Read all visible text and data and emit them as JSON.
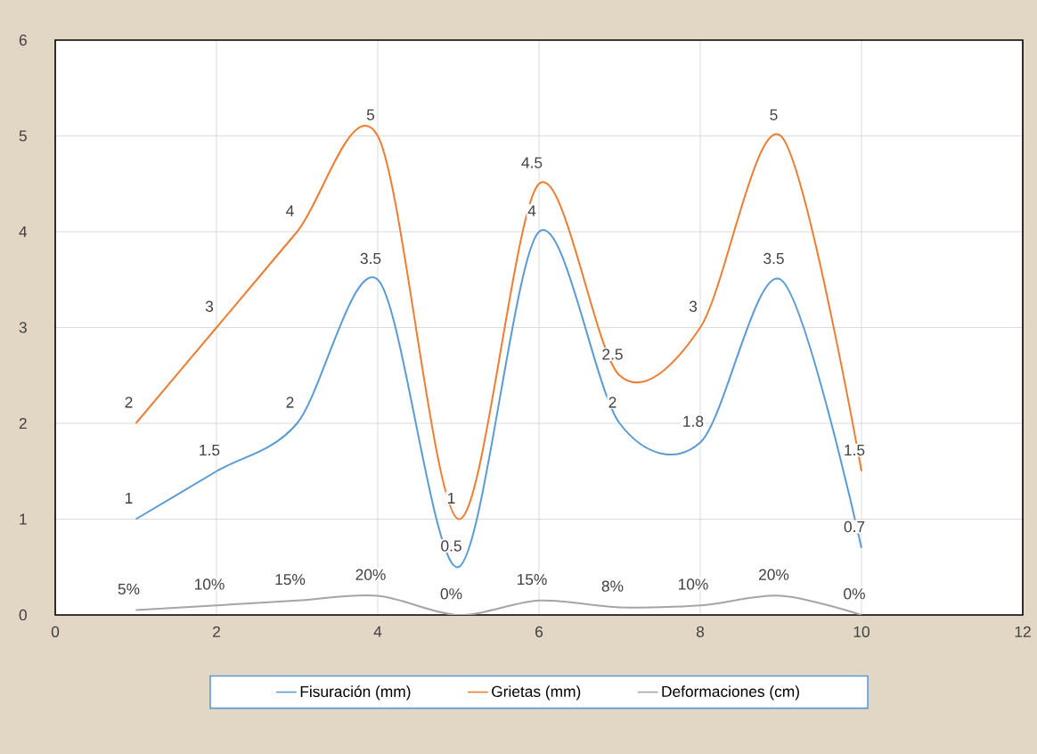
{
  "chart_data": {
    "type": "line",
    "x": [
      1,
      2,
      3,
      4,
      5,
      6,
      7,
      8,
      9,
      10
    ],
    "series": [
      {
        "name": "Fisuración (mm)",
        "color": "#5b9bd5",
        "values": [
          1,
          1.5,
          2,
          3.5,
          0.5,
          4,
          2,
          1.8,
          3.5,
          0.7
        ],
        "value_labels": [
          "1",
          "1.5",
          "2",
          "3.5",
          "0.5",
          "4",
          "2",
          "1.8",
          "3.5",
          "0.7"
        ]
      },
      {
        "name": "Grietas (mm)",
        "color": "#ed7d31",
        "values": [
          2,
          3,
          4,
          5,
          1,
          4.5,
          2.5,
          3,
          5,
          1.5
        ],
        "value_labels": [
          "2",
          "3",
          "4",
          "5",
          "1",
          "4.5",
          "2.5",
          "3",
          "5",
          "1.5"
        ]
      },
      {
        "name": "Deformaciones (cm)",
        "color": "#a5a5a5",
        "values": [
          0.05,
          0.1,
          0.15,
          0.2,
          0,
          0.15,
          0.08,
          0.1,
          0.2,
          0
        ],
        "value_labels": [
          "5%",
          "10%",
          "15%",
          "20%",
          "0%",
          "15%",
          "8%",
          "10%",
          "20%",
          "0%"
        ]
      }
    ],
    "xlim": [
      0,
      12
    ],
    "xticks": [
      0,
      2,
      4,
      6,
      8,
      10,
      12
    ],
    "ylim": [
      0,
      6
    ],
    "yticks": [
      0,
      1,
      2,
      3,
      4,
      5,
      6
    ],
    "grid": true,
    "legend": "bottom",
    "marker": "none",
    "line_style": "solid"
  }
}
